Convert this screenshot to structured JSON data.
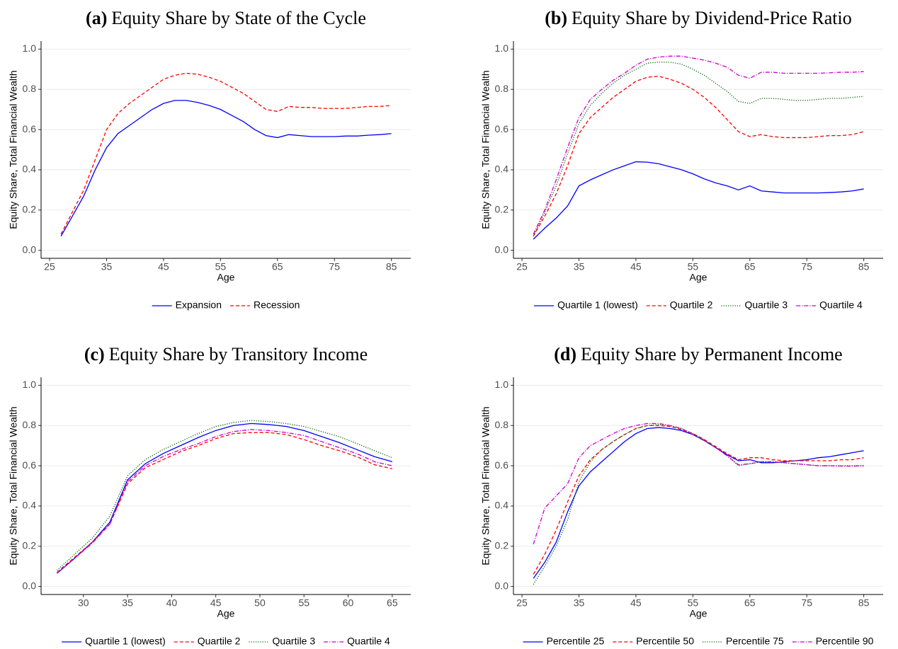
{
  "chart_data": [
    {
      "type": "line",
      "panel_label": "(a)",
      "title": "Equity Share by State of the Cycle",
      "xlabel": "Age",
      "ylabel": "Equity Share, Total Financial Wealth",
      "x": [
        27,
        29,
        31,
        33,
        35,
        37,
        39,
        41,
        43,
        45,
        47,
        49,
        51,
        53,
        55,
        57,
        59,
        61,
        63,
        65,
        67,
        69,
        71,
        73,
        75,
        77,
        79,
        81,
        83,
        85
      ],
      "xlim": [
        23.5,
        88.4
      ],
      "xticks": [
        25,
        35,
        45,
        55,
        65,
        75,
        85
      ],
      "ylim": [
        -0.04,
        1.04
      ],
      "yticks": [
        {
          "value": 0,
          "label": "0.0"
        },
        0.2,
        0.4,
        0.6,
        0.8,
        {
          "value": 1,
          "label": "1.0"
        }
      ],
      "grid": true,
      "legend": "bottom",
      "series": [
        {
          "name": "Expansion",
          "color": "#0000ff",
          "dash": "solid",
          "values": [
            0.07,
            0.17,
            0.27,
            0.4,
            0.51,
            0.58,
            0.62,
            0.66,
            0.7,
            0.73,
            0.745,
            0.745,
            0.735,
            0.72,
            0.7,
            0.67,
            0.64,
            0.6,
            0.57,
            0.56,
            0.575,
            0.57,
            0.565,
            0.565,
            0.565,
            0.568,
            0.568,
            0.572,
            0.575,
            0.58
          ]
        },
        {
          "name": "Recession",
          "color": "#ff0000",
          "dash": "dashed",
          "values": [
            0.08,
            0.19,
            0.3,
            0.45,
            0.6,
            0.68,
            0.73,
            0.77,
            0.81,
            0.85,
            0.87,
            0.88,
            0.875,
            0.86,
            0.84,
            0.81,
            0.78,
            0.74,
            0.7,
            0.69,
            0.715,
            0.71,
            0.71,
            0.705,
            0.705,
            0.705,
            0.71,
            0.715,
            0.715,
            0.72
          ]
        }
      ]
    },
    {
      "type": "line",
      "panel_label": "(b)",
      "title": "Equity Share by Dividend-Price Ratio",
      "xlabel": "Age",
      "ylabel": "Equity Share, Total Financial Wealth",
      "x": [
        27,
        29,
        31,
        33,
        35,
        37,
        39,
        41,
        43,
        45,
        47,
        49,
        51,
        53,
        55,
        57,
        59,
        61,
        63,
        65,
        67,
        69,
        71,
        73,
        75,
        77,
        79,
        81,
        83,
        85
      ],
      "xlim": [
        23.5,
        88.4
      ],
      "xticks": [
        25,
        35,
        45,
        55,
        65,
        75,
        85
      ],
      "ylim": [
        -0.04,
        1.04
      ],
      "yticks": [
        {
          "value": 0,
          "label": "0.0"
        },
        0.2,
        0.4,
        0.6,
        0.8,
        {
          "value": 1,
          "label": "1.0"
        }
      ],
      "grid": true,
      "legend": "bottom",
      "series": [
        {
          "name": "Quartile 1 (lowest)",
          "color": "#0000ff",
          "dash": "solid",
          "values": [
            0.055,
            0.11,
            0.16,
            0.22,
            0.32,
            0.35,
            0.375,
            0.4,
            0.42,
            0.44,
            0.438,
            0.43,
            0.415,
            0.4,
            0.38,
            0.355,
            0.335,
            0.32,
            0.3,
            0.32,
            0.295,
            0.29,
            0.285,
            0.285,
            0.285,
            0.285,
            0.287,
            0.29,
            0.295,
            0.305
          ]
        },
        {
          "name": "Quartile 2",
          "color": "#ff0000",
          "dash": "dashed",
          "values": [
            0.07,
            0.17,
            0.28,
            0.42,
            0.58,
            0.66,
            0.71,
            0.76,
            0.8,
            0.84,
            0.86,
            0.865,
            0.85,
            0.83,
            0.8,
            0.76,
            0.71,
            0.65,
            0.59,
            0.565,
            0.575,
            0.565,
            0.56,
            0.56,
            0.56,
            0.565,
            0.57,
            0.57,
            0.575,
            0.59
          ]
        },
        {
          "name": "Quartile 3",
          "color": "#006400",
          "dash": "dotted",
          "values": [
            0.07,
            0.19,
            0.32,
            0.48,
            0.63,
            0.72,
            0.78,
            0.83,
            0.87,
            0.9,
            0.93,
            0.935,
            0.935,
            0.925,
            0.9,
            0.87,
            0.83,
            0.79,
            0.74,
            0.73,
            0.755,
            0.755,
            0.75,
            0.745,
            0.745,
            0.75,
            0.755,
            0.755,
            0.76,
            0.765
          ]
        },
        {
          "name": "Quartile 4",
          "color": "#cc00cc",
          "dash": "dashdot",
          "values": [
            0.08,
            0.2,
            0.35,
            0.51,
            0.66,
            0.75,
            0.8,
            0.845,
            0.88,
            0.92,
            0.95,
            0.96,
            0.965,
            0.965,
            0.955,
            0.945,
            0.93,
            0.91,
            0.87,
            0.855,
            0.885,
            0.885,
            0.88,
            0.88,
            0.88,
            0.88,
            0.882,
            0.885,
            0.885,
            0.888
          ]
        }
      ]
    },
    {
      "type": "line",
      "panel_label": "(c)",
      "title": "Equity Share by Transitory Income",
      "xlabel": "Age",
      "ylabel": "Equity Share, Total Financial Wealth",
      "x": [
        27,
        29,
        31,
        33,
        35,
        37,
        39,
        41,
        43,
        45,
        47,
        49,
        51,
        53,
        55,
        57,
        59,
        61,
        63,
        65
      ],
      "xlim": [
        25.2,
        67.1
      ],
      "xticks": [
        30,
        35,
        40,
        45,
        50,
        55,
        60,
        65
      ],
      "ylim": [
        -0.04,
        1.04
      ],
      "yticks": [
        {
          "value": 0,
          "label": "0.0"
        },
        0.2,
        0.4,
        0.6,
        0.8,
        {
          "value": 1,
          "label": "1.0"
        }
      ],
      "grid": true,
      "legend": "bottom",
      "series": [
        {
          "name": "Quartile 1 (lowest)",
          "color": "#0000ff",
          "dash": "solid",
          "values": [
            0.065,
            0.14,
            0.22,
            0.32,
            0.53,
            0.61,
            0.66,
            0.7,
            0.74,
            0.775,
            0.8,
            0.81,
            0.805,
            0.795,
            0.775,
            0.745,
            0.715,
            0.68,
            0.645,
            0.62
          ]
        },
        {
          "name": "Quartile 2",
          "color": "#ff0000",
          "dash": "dashed",
          "values": [
            0.07,
            0.145,
            0.22,
            0.31,
            0.51,
            0.59,
            0.63,
            0.67,
            0.7,
            0.735,
            0.76,
            0.765,
            0.765,
            0.755,
            0.73,
            0.7,
            0.675,
            0.645,
            0.605,
            0.585
          ]
        },
        {
          "name": "Quartile 3",
          "color": "#006400",
          "dash": "dotted",
          "values": [
            0.08,
            0.16,
            0.24,
            0.35,
            0.55,
            0.63,
            0.68,
            0.72,
            0.76,
            0.795,
            0.815,
            0.825,
            0.82,
            0.81,
            0.795,
            0.77,
            0.745,
            0.71,
            0.675,
            0.64
          ]
        },
        {
          "name": "Quartile 4",
          "color": "#cc00cc",
          "dash": "dashdot",
          "values": [
            0.065,
            0.14,
            0.215,
            0.31,
            0.52,
            0.6,
            0.645,
            0.68,
            0.71,
            0.745,
            0.77,
            0.78,
            0.775,
            0.765,
            0.75,
            0.72,
            0.69,
            0.66,
            0.62,
            0.6
          ]
        }
      ]
    },
    {
      "type": "line",
      "panel_label": "(d)",
      "title": "Equity Share by Permanent Income",
      "xlabel": "Age",
      "ylabel": "Equity Share, Total Financial Wealth",
      "x": [
        27,
        29,
        31,
        33,
        35,
        37,
        39,
        41,
        43,
        45,
        47,
        49,
        51,
        53,
        55,
        57,
        59,
        61,
        63,
        65,
        67,
        69,
        71,
        73,
        75,
        77,
        79,
        81,
        83,
        85
      ],
      "xlim": [
        23.5,
        88.4
      ],
      "xticks": [
        25,
        35,
        45,
        55,
        65,
        75,
        85
      ],
      "ylim": [
        -0.04,
        1.04
      ],
      "yticks": [
        {
          "value": 0,
          "label": "0.0"
        },
        0.2,
        0.4,
        0.6,
        0.8,
        {
          "value": 1,
          "label": "1.0"
        }
      ],
      "grid": true,
      "legend": "bottom",
      "series": [
        {
          "name": "Percentile 25",
          "color": "#0000ff",
          "dash": "solid",
          "values": [
            0.04,
            0.12,
            0.22,
            0.37,
            0.5,
            0.57,
            0.62,
            0.67,
            0.72,
            0.76,
            0.785,
            0.79,
            0.785,
            0.775,
            0.755,
            0.725,
            0.69,
            0.655,
            0.625,
            0.63,
            0.615,
            0.615,
            0.62,
            0.625,
            0.63,
            0.64,
            0.645,
            0.655,
            0.665,
            0.675
          ]
        },
        {
          "name": "Percentile 50",
          "color": "#ff0000",
          "dash": "dashed",
          "values": [
            0.06,
            0.16,
            0.28,
            0.42,
            0.55,
            0.63,
            0.68,
            0.72,
            0.755,
            0.785,
            0.8,
            0.8,
            0.795,
            0.78,
            0.76,
            0.73,
            0.695,
            0.66,
            0.63,
            0.64,
            0.64,
            0.63,
            0.625,
            0.625,
            0.625,
            0.625,
            0.625,
            0.63,
            0.63,
            0.64
          ]
        },
        {
          "name": "Percentile 75",
          "color": "#006400",
          "dash": "dotted",
          "values": [
            0.01,
            0.1,
            0.2,
            0.33,
            0.52,
            0.62,
            0.68,
            0.72,
            0.755,
            0.785,
            0.8,
            0.805,
            0.8,
            0.785,
            0.76,
            0.73,
            0.69,
            0.65,
            0.6,
            0.61,
            0.62,
            0.62,
            0.615,
            0.61,
            0.605,
            0.6,
            0.6,
            0.6,
            0.6,
            0.6
          ]
        },
        {
          "name": "Percentile 90",
          "color": "#cc00cc",
          "dash": "dashdot",
          "values": [
            0.21,
            0.39,
            0.45,
            0.51,
            0.64,
            0.7,
            0.73,
            0.76,
            0.785,
            0.8,
            0.81,
            0.81,
            0.8,
            0.785,
            0.755,
            0.725,
            0.69,
            0.65,
            0.605,
            0.61,
            0.62,
            0.62,
            0.615,
            0.61,
            0.605,
            0.6,
            0.6,
            0.598,
            0.598,
            0.6
          ]
        }
      ]
    }
  ]
}
